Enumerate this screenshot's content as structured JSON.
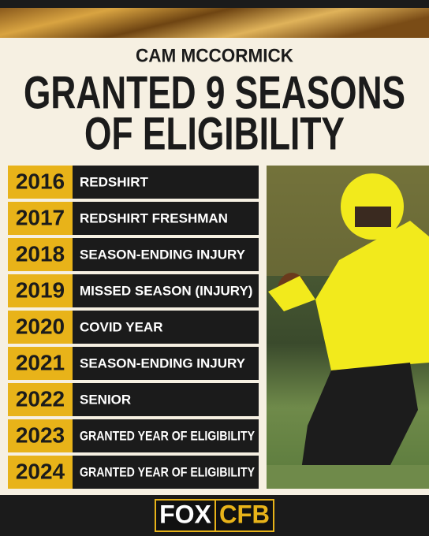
{
  "header": {
    "subtitle": "CAM MCCORMICK",
    "title_lines": [
      "GRANTED 9 SEASONS",
      "OF ELIGIBILITY"
    ]
  },
  "timeline": [
    {
      "year": "2016",
      "label": "REDSHIRT"
    },
    {
      "year": "2017",
      "label": "REDSHIRT FRESHMAN"
    },
    {
      "year": "2018",
      "label": "SEASON-ENDING INJURY"
    },
    {
      "year": "2019",
      "label": "MISSED SEASON (INJURY)"
    },
    {
      "year": "2020",
      "label": "COVID YEAR"
    },
    {
      "year": "2021",
      "label": "SEASON-ENDING INJURY"
    },
    {
      "year": "2022",
      "label": "SENIOR"
    },
    {
      "year": "2023",
      "label": "GRANTED YEAR OF ELIGIBILITY"
    },
    {
      "year": "2024",
      "label": "GRANTED YEAR OF ELIGIBILITY"
    }
  ],
  "footer": {
    "logo": [
      "FOX",
      "CFB"
    ]
  }
}
